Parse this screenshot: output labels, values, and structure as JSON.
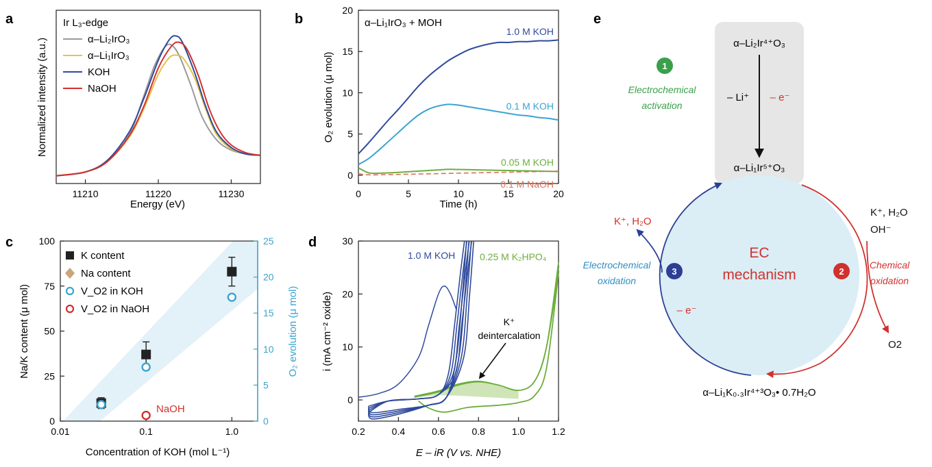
{
  "panels": {
    "a": {
      "letter": "a",
      "legend_title": "Ir L₃-edge",
      "ylabel": "Normalized intensity (a.u.)",
      "xlabel": "Energy (eV)",
      "xticks": [
        "11210",
        "11220",
        "11230"
      ]
    },
    "b": {
      "letter": "b",
      "title": "α–Li₁IrO₃ + MOH",
      "ylabel": "O₂ evolution (μ mol)",
      "xlabel": "Time (h)",
      "xticks": [
        "0",
        "5",
        "10",
        "15",
        "20"
      ],
      "yticks": [
        "0",
        "5",
        "10",
        "15",
        "20"
      ]
    },
    "c": {
      "letter": "c",
      "ylabel_left": "Na/K content (μ mol)",
      "ylabel_right": "O₂ evolution (μ mol)",
      "xlabel": "Concentration of KOH (mol L⁻¹)",
      "xticks": [
        "0.01",
        "0.1",
        "1.0"
      ],
      "yticks_left": [
        "0",
        "25",
        "50",
        "75",
        "100"
      ],
      "yticks_right": [
        "0",
        "5",
        "10",
        "15",
        "20",
        "25"
      ],
      "naoh_label": "NaOH"
    },
    "d": {
      "letter": "d",
      "ylabel": "i (mA cm⁻² oxide)",
      "xlabel": "E – iR (V vs. NHE)",
      "xticks": [
        "0.2",
        "0.4",
        "0.6",
        "0.8",
        "1.0",
        "1.2"
      ],
      "yticks": [
        "0",
        "10",
        "20",
        "30"
      ],
      "annotation_line1": "K⁺",
      "annotation_line2": "deintercalation"
    },
    "e": {
      "letter": "e",
      "top_formula": "α–Li₂Ir⁴⁺O₃",
      "mid_formula": "α–Li₁Ir⁵⁺O₃",
      "bottom_formula": "α–Li₁K₀.₃Ir⁴⁺³O₃• 0.7H₂O",
      "minus_li": "– Li⁺",
      "minus_e_top": "– e⁻",
      "minus_e_left": "– e⁻",
      "step1_number": "1",
      "step1_line1": "Electrochemical",
      "step1_line2": "activation",
      "step2_number": "2",
      "step2_line1": "Chemical",
      "step2_line2": "oxidation",
      "step3_number": "3",
      "step3_line1": "Electrochemical",
      "step3_line2": "oxidation",
      "center_line1": "EC",
      "center_line2": "mechanism",
      "left_species": "K⁺, H₂O",
      "right_species_line1": "K⁺, H₂O",
      "right_species_line2": "OH⁻",
      "product": "O2"
    }
  },
  "colors": {
    "gray": "#9a9a9a",
    "yellow": "#e3c24a",
    "blue_dark": "#2f4a9c",
    "red": "#d0312d",
    "cyan": "#3aa3d1",
    "green": "#6cae3d",
    "naoh_dashed": "#d9705a",
    "green_step": "#3aa04a",
    "red_step": "#d0312d",
    "blue_step": "#2c3f94",
    "band": "#e3f1f8",
    "circle_fill": "#dbedf5",
    "box_fill": "#e6e6e6"
  },
  "chart_data": [
    {
      "panel": "a",
      "type": "line",
      "xlabel": "Energy (eV)",
      "ylabel": "Normalized intensity (a.u.)",
      "xlim": [
        11206,
        11234
      ],
      "ylim": [
        0,
        1.35
      ],
      "series": [
        {
          "name": "α–Li₂IrO₃",
          "color": "#9a9a9a",
          "peak": 11221.3,
          "height": 1.08,
          "x": [
            11206,
            11210,
            11213,
            11216,
            11218,
            11219.5,
            11221,
            11222,
            11223,
            11224.5,
            11226,
            11228,
            11230,
            11232,
            11234
          ],
          "y": [
            0.06,
            0.09,
            0.17,
            0.38,
            0.68,
            0.92,
            1.07,
            1.07,
            0.98,
            0.76,
            0.52,
            0.34,
            0.26,
            0.23,
            0.22
          ]
        },
        {
          "name": "α–Li₁IrO₃",
          "color": "#e3c24a",
          "peak": 11222.6,
          "height": 1.0,
          "x": [
            11206,
            11210,
            11213,
            11216,
            11218,
            11220,
            11221.5,
            11222.5,
            11223.5,
            11225,
            11226.5,
            11228,
            11230,
            11232,
            11234
          ],
          "y": [
            0.06,
            0.09,
            0.17,
            0.36,
            0.58,
            0.85,
            0.98,
            1.0,
            0.97,
            0.82,
            0.58,
            0.38,
            0.27,
            0.23,
            0.22
          ]
        },
        {
          "name": "KOH",
          "color": "#2f4a9c",
          "peak": 11222.4,
          "height": 1.15,
          "x": [
            11206,
            11210,
            11213,
            11216,
            11218,
            11220,
            11221.5,
            11222.4,
            11223.3,
            11225,
            11226.5,
            11228,
            11230,
            11232,
            11234
          ],
          "y": [
            0.06,
            0.09,
            0.18,
            0.4,
            0.66,
            0.96,
            1.12,
            1.15,
            1.1,
            0.86,
            0.6,
            0.4,
            0.28,
            0.23,
            0.22
          ]
        },
        {
          "name": "NaOH",
          "color": "#d0312d",
          "peak": 11222.9,
          "height": 1.1,
          "x": [
            11206,
            11210,
            11213,
            11216,
            11218,
            11220,
            11221.8,
            11222.9,
            11224,
            11225.5,
            11227,
            11228.5,
            11230,
            11232,
            11234
          ],
          "y": [
            0.06,
            0.09,
            0.17,
            0.37,
            0.6,
            0.9,
            1.07,
            1.1,
            1.04,
            0.84,
            0.58,
            0.4,
            0.3,
            0.24,
            0.22
          ]
        }
      ]
    },
    {
      "panel": "b",
      "type": "line",
      "xlabel": "Time (h)",
      "ylabel": "O₂ evolution (μ mol)",
      "xlim": [
        0,
        20
      ],
      "ylim": [
        -1,
        20
      ],
      "series": [
        {
          "name": "1.0 M KOH",
          "color": "#2f4a9c",
          "x": [
            0,
            1,
            2,
            3,
            4,
            5,
            6,
            7,
            8,
            9,
            10,
            11,
            12,
            13,
            14,
            15,
            16,
            17,
            18,
            19,
            20
          ],
          "y": [
            2.6,
            3.9,
            5.3,
            6.7,
            8.0,
            9.4,
            10.8,
            12.0,
            13.0,
            13.9,
            14.6,
            15.2,
            15.6,
            15.9,
            16.1,
            16.1,
            16.2,
            16.2,
            16.3,
            16.3,
            16.4
          ]
        },
        {
          "name": "0.1 M KOH",
          "color": "#3aa3d1",
          "x": [
            0,
            1,
            2,
            3,
            4,
            5,
            6,
            7,
            8,
            9,
            10,
            11,
            12,
            13,
            14,
            15,
            16,
            17,
            18,
            19,
            20
          ],
          "y": [
            1.3,
            2.0,
            3.0,
            4.1,
            5.2,
            6.3,
            7.3,
            8.0,
            8.4,
            8.6,
            8.5,
            8.3,
            8.1,
            7.9,
            7.7,
            7.5,
            7.3,
            7.2,
            7.0,
            6.9,
            6.7
          ]
        },
        {
          "name": "0.05 M KOH",
          "color": "#6cae3d",
          "x": [
            0,
            1,
            2,
            4,
            6,
            8,
            9,
            10,
            12,
            14,
            16,
            18,
            20
          ],
          "y": [
            0.9,
            0.3,
            0.25,
            0.35,
            0.5,
            0.65,
            0.72,
            0.7,
            0.65,
            0.6,
            0.55,
            0.5,
            0.45
          ]
        },
        {
          "name": "0.1 M NaOH",
          "color": "#d9705a",
          "dashed": true,
          "x": [
            0,
            1,
            4,
            8,
            12,
            16,
            20
          ],
          "y": [
            0.2,
            0.05,
            0.1,
            0.2,
            0.3,
            0.4,
            0.5
          ]
        }
      ]
    },
    {
      "panel": "c",
      "type": "scatter",
      "xlabel": "Concentration of KOH (mol L⁻¹)",
      "ylabel": "Na/K content (μ mol)",
      "ylabel_right": "O₂ evolution (μ mol)",
      "xscale": "log",
      "xlim": [
        0.01,
        2
      ],
      "ylim": [
        0,
        100
      ],
      "ylim_right": [
        0,
        25
      ],
      "series": [
        {
          "name": "K content",
          "color": "#222222",
          "marker": "square",
          "x": [
            0.03,
            0.1,
            1.0
          ],
          "y": [
            10,
            37,
            83
          ],
          "err": [
            3,
            7,
            8
          ],
          "axis": "left"
        },
        {
          "name": "Na content",
          "color": "#c8a678",
          "marker": "diamond",
          "x": [],
          "y": [],
          "axis": "left"
        },
        {
          "name": "V_O2 in KOH",
          "color": "#3aa3d1",
          "marker": "open-circle",
          "x": [
            0.03,
            0.1,
            1.0
          ],
          "y": [
            2.3,
            7.5,
            17.2
          ],
          "axis": "right"
        },
        {
          "name": "V_O2 in NaOH",
          "color": "#d0312d",
          "marker": "open-circle",
          "x": [
            0.1
          ],
          "y": [
            0.8
          ],
          "axis": "right"
        }
      ]
    },
    {
      "panel": "d",
      "type": "line",
      "xlabel": "E – iR (V vs. NHE)",
      "ylabel": "i (mA cm⁻² oxide)",
      "xlim": [
        0.2,
        1.2
      ],
      "ylim": [
        -4,
        30
      ],
      "series": [
        {
          "name": "1.0 M KOH",
          "color": "#2f4a9c",
          "x": [
            0.2,
            0.3,
            0.4,
            0.5,
            0.55,
            0.6,
            0.63,
            0.66,
            0.69,
            0.72
          ],
          "y": [
            0.5,
            1.2,
            3.0,
            8.0,
            14.0,
            20.0,
            21.5,
            20.0,
            17.0,
            30.0
          ]
        },
        {
          "name": "0.25 M K₂HPO₄",
          "color": "#6cae3d",
          "x": [
            0.48,
            0.6,
            0.7,
            0.8,
            0.9,
            1.0,
            1.1,
            1.15,
            1.2
          ],
          "y": [
            0.5,
            1.5,
            2.8,
            3.4,
            2.8,
            1.8,
            5.0,
            14.0,
            26.0
          ]
        }
      ]
    }
  ]
}
